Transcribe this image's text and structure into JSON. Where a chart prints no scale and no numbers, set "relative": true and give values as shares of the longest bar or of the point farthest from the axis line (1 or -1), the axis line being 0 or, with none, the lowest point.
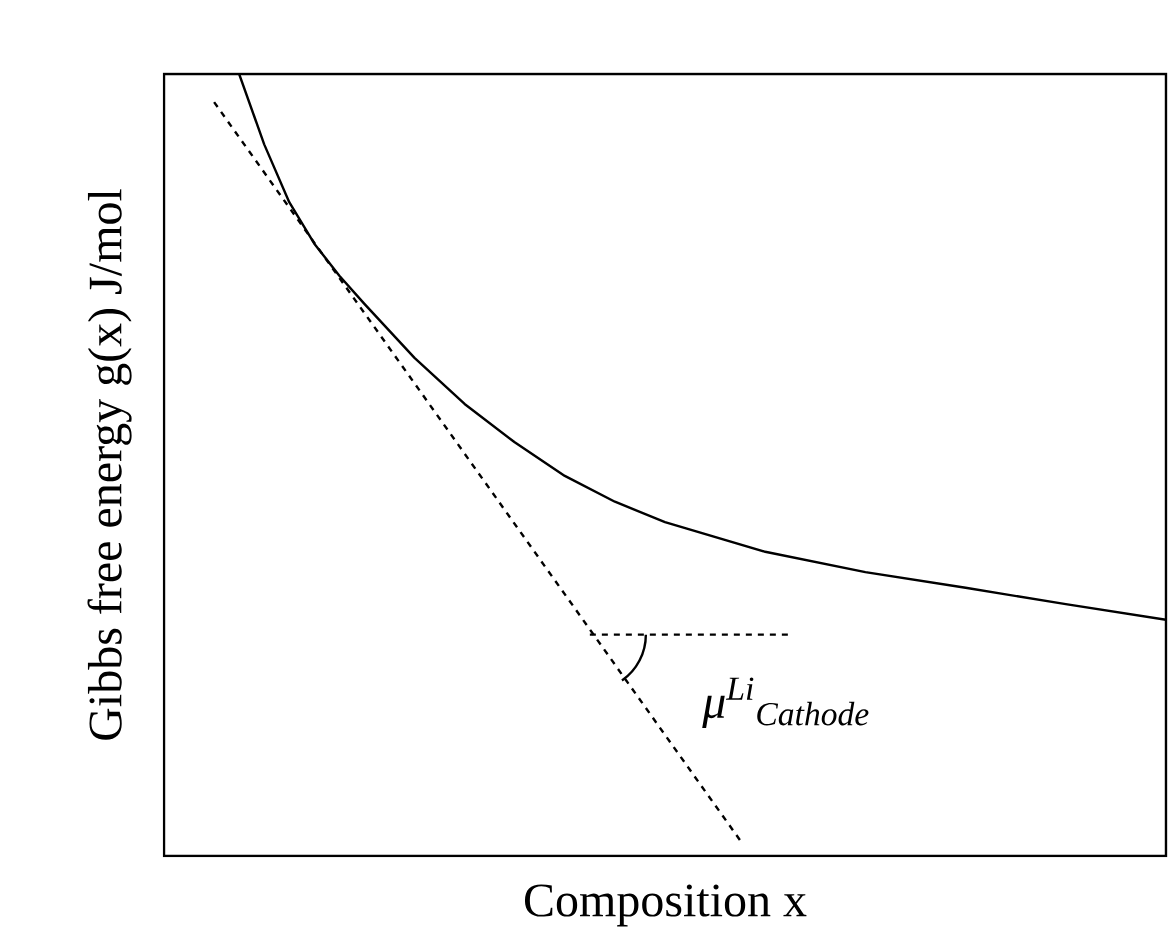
{
  "chart_data": {
    "type": "line",
    "relative": true,
    "xlabel": "Composition x",
    "ylabel": "Gibbs free energy g(x) J/mol",
    "categories": [
      null,
      null,
      null,
      null,
      null,
      null,
      null,
      null,
      null,
      null,
      null,
      null,
      null,
      null,
      null,
      null,
      null,
      null,
      null,
      null,
      null,
      null,
      null,
      null,
      null,
      null,
      null,
      null,
      null,
      null,
      null,
      null,
      null,
      null,
      null,
      null,
      null,
      null,
      null,
      null,
      null
    ],
    "series": [
      {
        "color": "#000000",
        "line_style": "solid",
        "values": [
          null,
          null,
          null,
          1,
          0.91,
          0.836,
          0.783,
          0.742,
          0.706,
          null,
          0.637,
          null,
          0.578,
          null,
          0.529,
          null,
          0.486,
          null,
          0.453,
          null,
          0.427,
          null,
          null,
          null,
          0.389,
          null,
          null,
          null,
          0.363,
          null,
          null,
          null,
          0.343,
          null,
          null,
          null,
          0.322,
          null,
          null,
          null,
          0.302
        ]
      },
      {
        "color": "#000000",
        "line_style": "dashed",
        "values": [
          null,
          null,
          0.964,
          null,
          null,
          null,
          null,
          null,
          null,
          null,
          null,
          null,
          null,
          null,
          null,
          null,
          null,
          null,
          null,
          null,
          null,
          null,
          null,
          0.02,
          null,
          null,
          null,
          null,
          null,
          null,
          null,
          null,
          null,
          null,
          null,
          null,
          null,
          null,
          null,
          null,
          null
        ]
      },
      {
        "color": "#000000",
        "line_style": "dashed",
        "values": [
          null,
          null,
          null,
          null,
          null,
          null,
          null,
          null,
          null,
          null,
          null,
          null,
          null,
          null,
          null,
          null,
          null,
          0.283,
          null,
          null,
          null,
          null,
          null,
          null,
          null,
          0.283,
          null,
          null,
          null,
          null,
          null,
          null,
          null,
          null,
          null,
          null,
          null,
          null,
          null,
          null,
          null
        ]
      }
    ],
    "annotations": [
      "μ$^{Li}$$_{Cathode}$"
    ]
  }
}
